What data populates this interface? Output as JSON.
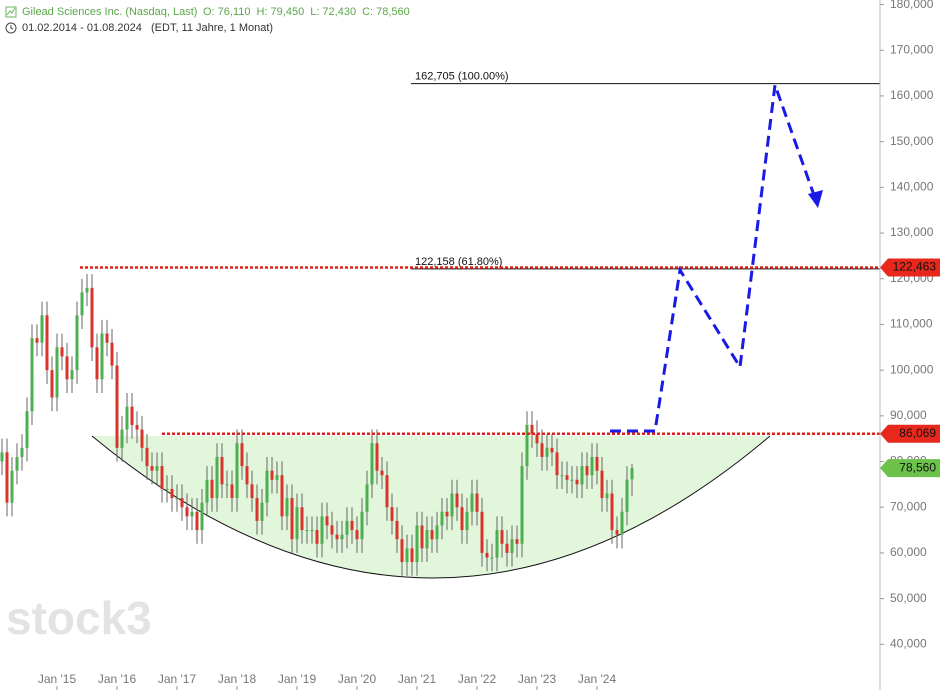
{
  "chart_data": {
    "type": "candlestick",
    "title": "Gilead Sciences Inc. (Nasdaq, Last)",
    "ohlc_labels": [
      "O: 76,110",
      "H: 79,450",
      "L: 72,430",
      "C: 78,560"
    ],
    "date_range": "01.02.2014 - 01.08.2024",
    "range_note": "(EDT, 11 Jahre, 1 Monat)",
    "watermark": "stock3",
    "up_color": "#4caf50",
    "down_color": "#d9342b",
    "ylim": [
      30000,
      181000
    ],
    "yticks": [
      {
        "value": 40000,
        "label": "40,000"
      },
      {
        "value": 50000,
        "label": "50,000"
      },
      {
        "value": 60000,
        "label": "60,000"
      },
      {
        "value": 70000,
        "label": "70,000"
      },
      {
        "value": 80000,
        "label": "80,000"
      },
      {
        "value": 90000,
        "label": "90,000"
      },
      {
        "value": 100000,
        "label": "100,000"
      },
      {
        "value": 110000,
        "label": "110,000"
      },
      {
        "value": 120000,
        "label": "120,000"
      },
      {
        "value": 130000,
        "label": "130,000"
      },
      {
        "value": 140000,
        "label": "140,000"
      },
      {
        "value": 150000,
        "label": "150,000"
      },
      {
        "value": 160000,
        "label": "160,000"
      },
      {
        "value": 170000,
        "label": "170,000"
      },
      {
        "value": 180000,
        "label": "180,000"
      }
    ],
    "categories": [
      null,
      null,
      null,
      null,
      null,
      null,
      null,
      null,
      null,
      null,
      null,
      "Jan '15",
      null,
      null,
      null,
      null,
      null,
      null,
      null,
      null,
      null,
      null,
      null,
      "Jan '16",
      null,
      null,
      null,
      null,
      null,
      null,
      null,
      null,
      null,
      null,
      null,
      "Jan '17",
      null,
      null,
      null,
      null,
      null,
      null,
      null,
      null,
      null,
      null,
      null,
      "Jan '18",
      null,
      null,
      null,
      null,
      null,
      null,
      null,
      null,
      null,
      null,
      null,
      "Jan '19",
      null,
      null,
      null,
      null,
      null,
      null,
      null,
      null,
      null,
      null,
      null,
      "Jan '20",
      null,
      null,
      null,
      null,
      null,
      null,
      null,
      null,
      null,
      null,
      null,
      "Jan '21",
      null,
      null,
      null,
      null,
      null,
      null,
      null,
      null,
      null,
      null,
      null,
      "Jan '22",
      null,
      null,
      null,
      null,
      null,
      null,
      null,
      null,
      null,
      null,
      null,
      "Jan '23",
      null,
      null,
      null,
      null,
      null,
      null,
      null,
      null,
      null,
      null,
      null,
      "Jan '24",
      null,
      null,
      null,
      null,
      null,
      null,
      null
    ],
    "open": [
      80000,
      82000,
      71000,
      78000,
      81000,
      83000,
      91000,
      107000,
      106000,
      112000,
      100000,
      94000,
      105000,
      103000,
      98000,
      100000,
      112000,
      117000,
      118000,
      105000,
      98000,
      108000,
      106000,
      101000,
      83000,
      87000,
      92000,
      88000,
      87000,
      83000,
      79000,
      78000,
      79000,
      74000,
      74000,
      72000,
      72000,
      70000,
      68000,
      69000,
      65000,
      71000,
      76000,
      72000,
      81000,
      75000,
      75000,
      72000,
      84000,
      79000,
      75000,
      72000,
      67000,
      71000,
      78000,
      76000,
      77000,
      68000,
      72000,
      63000,
      70000,
      65000,
      65000,
      65000,
      62000,
      68000,
      66000,
      64000,
      63000,
      64000,
      67000,
      65000,
      63000,
      69000,
      75000,
      84000,
      78000,
      77000,
      70000,
      67000,
      63000,
      58000,
      61000,
      58000,
      66000,
      61000,
      65000,
      63000,
      66000,
      69000,
      68000,
      73000,
      70000,
      65000,
      69000,
      73000,
      69000,
      60000,
      59000,
      59000,
      65000,
      62000,
      60000,
      63000,
      62000,
      79000,
      88000,
      86000,
      84000,
      81000,
      83000,
      82000,
      77000,
      77000,
      76000,
      76000,
      75000,
      79000,
      77000,
      81000,
      78000,
      72000,
      73000,
      65000,
      64000,
      69000,
      76110
    ],
    "high": [
      85000,
      85000,
      81000,
      84000,
      86000,
      94000,
      110000,
      110000,
      115000,
      115000,
      103000,
      108000,
      108000,
      106000,
      103000,
      115000,
      120000,
      121000,
      121000,
      108000,
      111000,
      111000,
      109000,
      104000,
      90000,
      95000,
      95000,
      91000,
      90000,
      86000,
      82000,
      82000,
      82000,
      77000,
      77000,
      75000,
      75000,
      73000,
      72000,
      72000,
      74000,
      79000,
      79000,
      84000,
      84000,
      78000,
      78000,
      87000,
      87000,
      82000,
      78000,
      75000,
      74000,
      81000,
      81000,
      80000,
      80000,
      75000,
      75000,
      73000,
      73000,
      68000,
      68000,
      68000,
      71000,
      71000,
      69000,
      67000,
      67000,
      70000,
      70000,
      68000,
      72000,
      78000,
      87000,
      87000,
      81000,
      80000,
      73000,
      70000,
      66000,
      64000,
      64000,
      69000,
      69000,
      68000,
      68000,
      69000,
      72000,
      72000,
      76000,
      76000,
      73000,
      72000,
      76000,
      76000,
      72000,
      63000,
      62000,
      68000,
      68000,
      65000,
      66000,
      66000,
      82000,
      91000,
      91000,
      89000,
      87000,
      86000,
      86000,
      85000,
      80000,
      80000,
      79000,
      79000,
      82000,
      82000,
      84000,
      84000,
      81000,
      76000,
      76000,
      68000,
      72000,
      79000,
      79450
    ],
    "low": [
      77000,
      68000,
      68000,
      75000,
      78000,
      80000,
      88000,
      103000,
      103000,
      97000,
      91000,
      91000,
      100000,
      95000,
      95000,
      97000,
      109000,
      114000,
      102000,
      95000,
      95000,
      103000,
      98000,
      80000,
      80000,
      84000,
      85000,
      84000,
      80000,
      76000,
      75000,
      75000,
      71000,
      71000,
      69000,
      69000,
      67000,
      65000,
      65000,
      62000,
      62000,
      68000,
      69000,
      69000,
      72000,
      72000,
      69000,
      69000,
      76000,
      72000,
      69000,
      64000,
      64000,
      68000,
      73000,
      73000,
      65000,
      65000,
      60000,
      60000,
      62000,
      62000,
      62000,
      59000,
      59000,
      63000,
      61000,
      60000,
      60000,
      61000,
      62000,
      60000,
      60000,
      66000,
      72000,
      75000,
      74000,
      67000,
      64000,
      60000,
      55000,
      55000,
      55000,
      55000,
      58000,
      58000,
      60000,
      60000,
      63000,
      65000,
      65000,
      67000,
      62000,
      62000,
      66000,
      66000,
      57000,
      56000,
      56000,
      56000,
      59000,
      57000,
      57000,
      59000,
      59000,
      76000,
      83000,
      81000,
      78000,
      78000,
      79000,
      74000,
      74000,
      73000,
      73000,
      72000,
      72000,
      74000,
      74000,
      75000,
      69000,
      69000,
      62000,
      61000,
      61000,
      66000,
      72430
    ],
    "close": [
      82000,
      71000,
      78000,
      81000,
      83000,
      91000,
      107000,
      106000,
      112000,
      100000,
      94000,
      105000,
      103000,
      98000,
      100000,
      112000,
      117000,
      118000,
      105000,
      98000,
      108000,
      106000,
      101000,
      83000,
      87000,
      92000,
      88000,
      87000,
      83000,
      79000,
      78000,
      79000,
      74000,
      74000,
      72000,
      72000,
      70000,
      68000,
      69000,
      65000,
      71000,
      76000,
      72000,
      81000,
      75000,
      75000,
      72000,
      84000,
      79000,
      75000,
      72000,
      67000,
      71000,
      78000,
      76000,
      77000,
      68000,
      72000,
      63000,
      70000,
      65000,
      65000,
      65000,
      62000,
      68000,
      66000,
      64000,
      63000,
      64000,
      67000,
      65000,
      63000,
      69000,
      75000,
      84000,
      78000,
      77000,
      70000,
      67000,
      63000,
      58000,
      61000,
      58000,
      66000,
      61000,
      65000,
      63000,
      66000,
      69000,
      68000,
      73000,
      70000,
      65000,
      69000,
      73000,
      69000,
      60000,
      59000,
      59000,
      65000,
      62000,
      60000,
      63000,
      62000,
      79000,
      88000,
      86000,
      84000,
      81000,
      83000,
      82000,
      77000,
      77000,
      76000,
      76000,
      75000,
      79000,
      77000,
      81000,
      78000,
      72000,
      73000,
      65000,
      64000,
      69000,
      76000,
      78560
    ],
    "last_price": {
      "value": 78560,
      "label": "78,560"
    },
    "resistance_levels": [
      {
        "value": 122463,
        "label": "122,463"
      },
      {
        "value": 86069,
        "label": "86,069"
      }
    ],
    "fib_levels": [
      {
        "value": 162705,
        "label": "162,705 (100.00%)"
      },
      {
        "value": 122158,
        "label": "122,158 (61.80%)"
      }
    ]
  }
}
